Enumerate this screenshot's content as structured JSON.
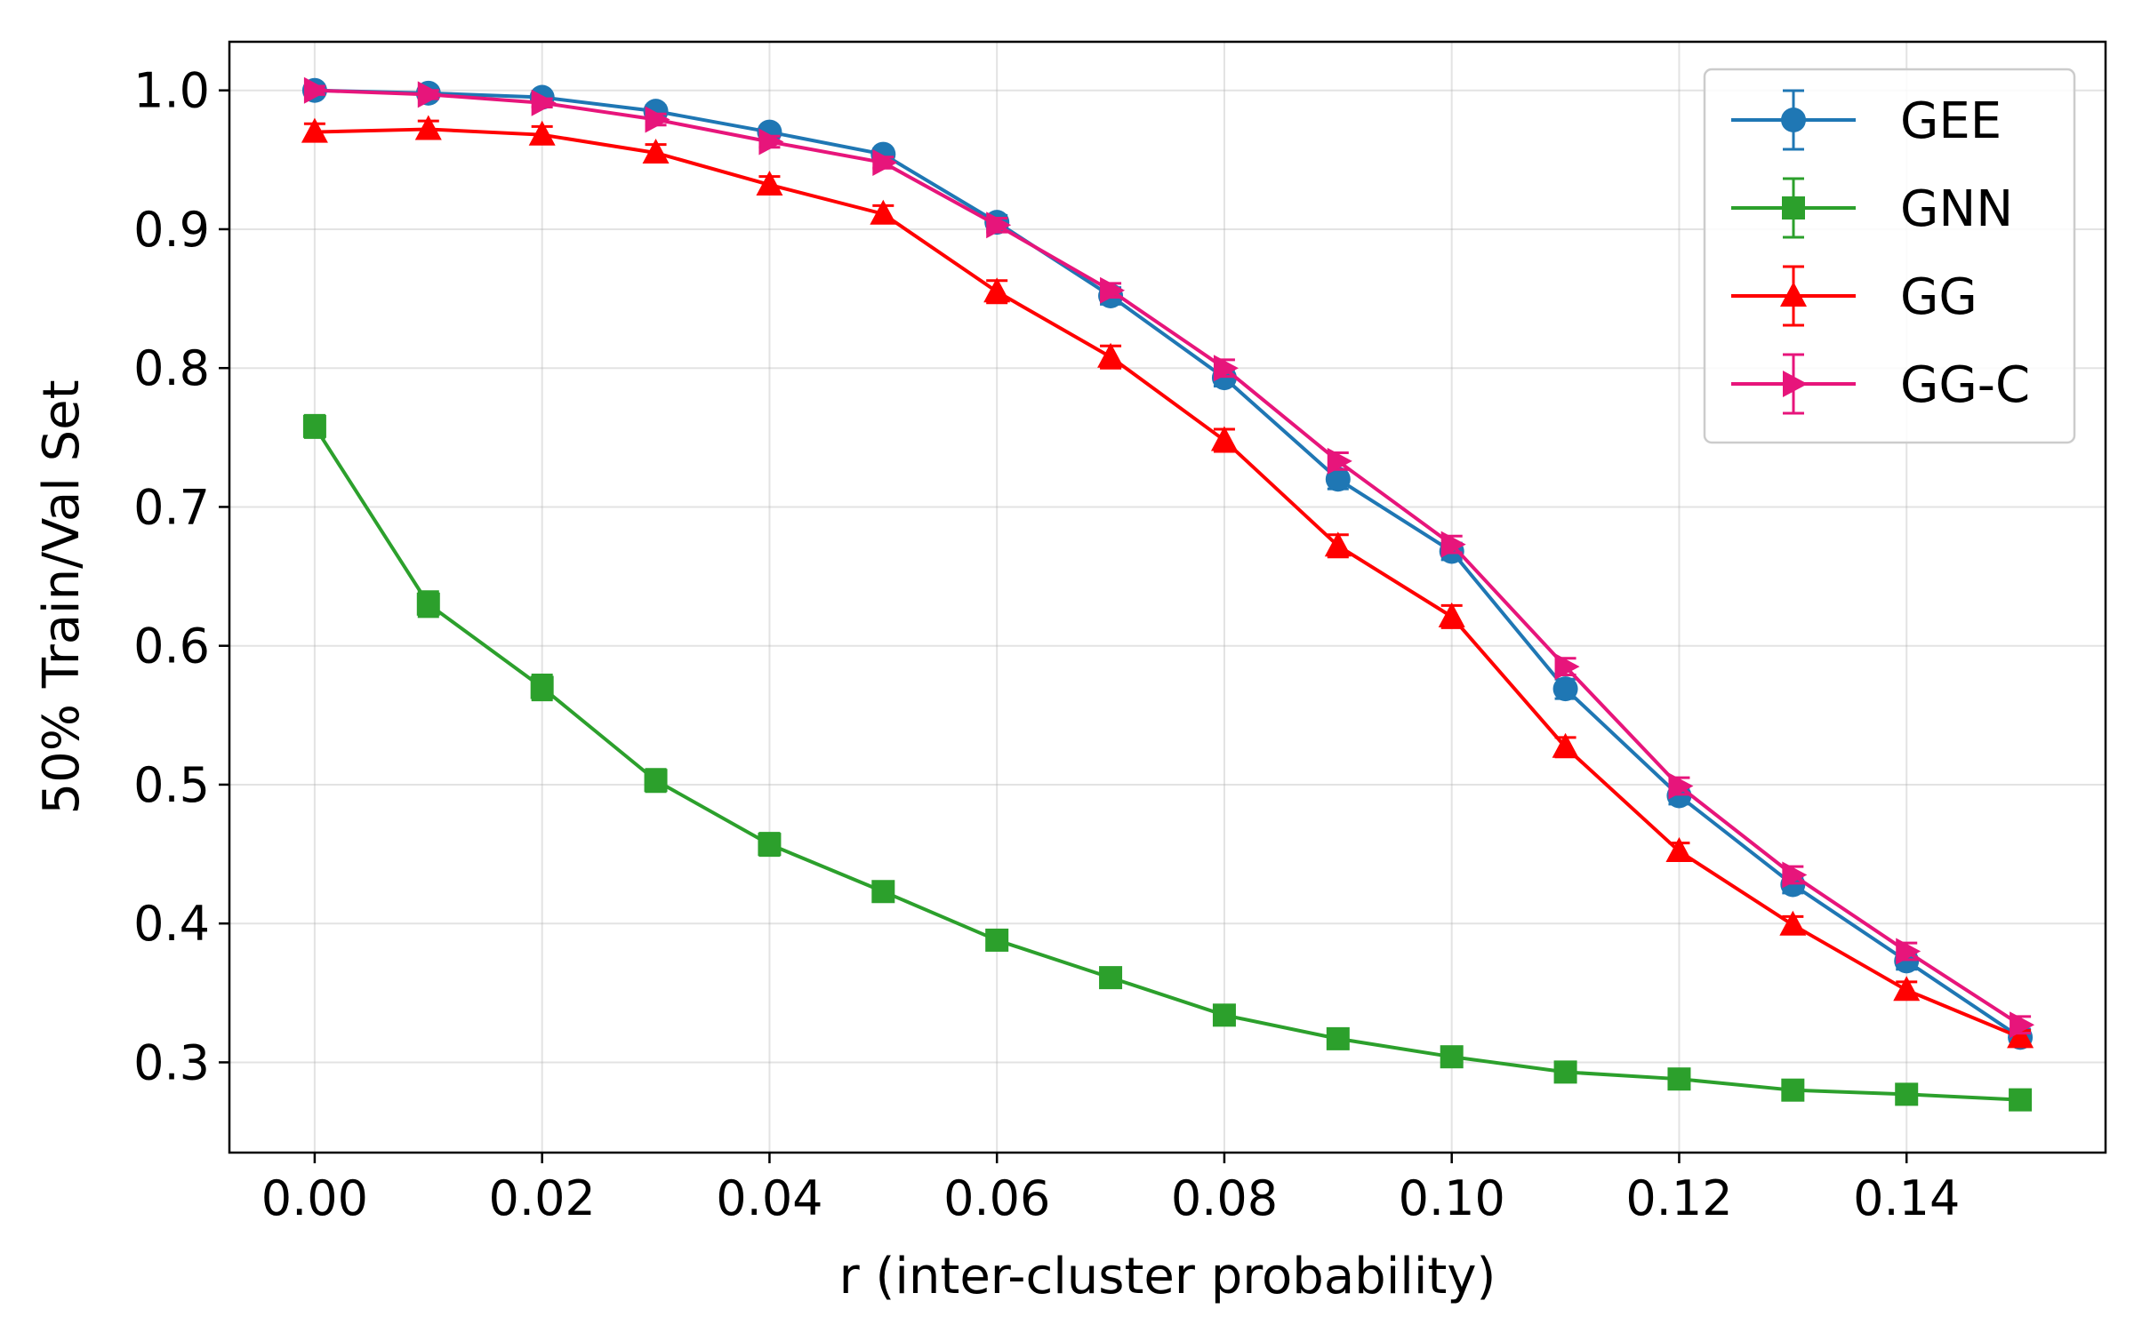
{
  "chart_data": {
    "type": "line",
    "title": "",
    "xlabel": "r (inter-cluster probability)",
    "ylabel": "50% Train/Val Set",
    "xlim": [
      -0.0075,
      0.1575
    ],
    "ylim": [
      0.235,
      1.035
    ],
    "grid": true,
    "legend_position": "top-right",
    "x_ticks": [
      0.0,
      0.02,
      0.04,
      0.06,
      0.08,
      0.1,
      0.12,
      0.14
    ],
    "x_tick_labels": [
      "0.00",
      "0.02",
      "0.04",
      "0.06",
      "0.08",
      "0.10",
      "0.12",
      "0.14"
    ],
    "y_ticks": [
      0.3,
      0.4,
      0.5,
      0.6,
      0.7,
      0.8,
      0.9,
      1.0
    ],
    "y_tick_labels": [
      "0.3",
      "0.4",
      "0.5",
      "0.6",
      "0.7",
      "0.8",
      "0.9",
      "1.0"
    ],
    "x": [
      0.0,
      0.01,
      0.02,
      0.03,
      0.04,
      0.05,
      0.06,
      0.07,
      0.08,
      0.09,
      0.1,
      0.11,
      0.12,
      0.13,
      0.14,
      0.15
    ],
    "series": [
      {
        "name": "GEE",
        "color": "#1f77b4",
        "marker": "circle",
        "values": [
          1.0,
          0.998,
          0.995,
          0.985,
          0.97,
          0.954,
          0.905,
          0.852,
          0.793,
          0.72,
          0.668,
          0.569,
          0.492,
          0.428,
          0.373,
          0.318
        ],
        "errors": [
          0.003,
          0.003,
          0.003,
          0.004,
          0.004,
          0.004,
          0.005,
          0.006,
          0.006,
          0.007,
          0.006,
          0.007,
          0.006,
          0.006,
          0.006,
          0.006
        ]
      },
      {
        "name": "GNN",
        "color": "#2ca02c",
        "marker": "square",
        "values": [
          0.758,
          0.63,
          0.57,
          0.503,
          0.457,
          0.423,
          0.388,
          0.361,
          0.334,
          0.317,
          0.304,
          0.293,
          0.288,
          0.28,
          0.277,
          0.273
        ],
        "errors": [
          0.008,
          0.009,
          0.009,
          0.008,
          0.008,
          0.007,
          0.007,
          0.006,
          0.006,
          0.006,
          0.005,
          0.005,
          0.005,
          0.005,
          0.005,
          0.005
        ]
      },
      {
        "name": "GG",
        "color": "#ff0000",
        "marker": "triangle",
        "values": [
          0.97,
          0.972,
          0.968,
          0.955,
          0.932,
          0.911,
          0.855,
          0.808,
          0.748,
          0.672,
          0.621,
          0.527,
          0.452,
          0.399,
          0.352,
          0.318
        ],
        "errors": [
          0.006,
          0.006,
          0.006,
          0.006,
          0.006,
          0.006,
          0.008,
          0.008,
          0.008,
          0.008,
          0.008,
          0.007,
          0.006,
          0.006,
          0.006,
          0.005
        ]
      },
      {
        "name": "GG-C",
        "color": "#e7157b",
        "marker": "triangle-right",
        "values": [
          1.0,
          0.997,
          0.991,
          0.979,
          0.963,
          0.948,
          0.903,
          0.856,
          0.8,
          0.733,
          0.673,
          0.585,
          0.499,
          0.435,
          0.38,
          0.327
        ],
        "errors": [
          0.003,
          0.003,
          0.003,
          0.004,
          0.004,
          0.004,
          0.005,
          0.005,
          0.006,
          0.006,
          0.006,
          0.006,
          0.006,
          0.006,
          0.006,
          0.006
        ]
      }
    ]
  }
}
